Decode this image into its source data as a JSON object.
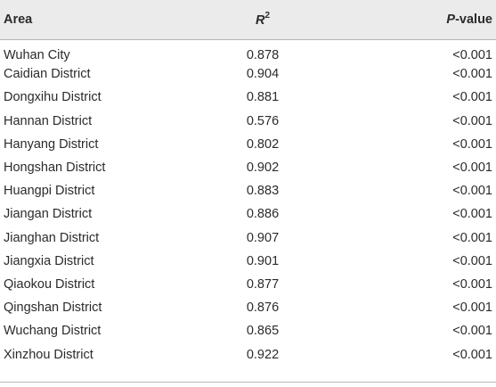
{
  "table": {
    "headers": {
      "area": "Area",
      "r2_base": "R",
      "r2_sup": "2",
      "p_italic": "P",
      "p_rest": "-value"
    },
    "rows": [
      {
        "area": "Wuhan City",
        "r2": "0.878",
        "p": "<0.001"
      },
      {
        "area": "Caidian District",
        "r2": "0.904",
        "p": "<0.001"
      },
      {
        "area": "Dongxihu District",
        "r2": "0.881",
        "p": "<0.001"
      },
      {
        "area": "Hannan District",
        "r2": "0.576",
        "p": "<0.001"
      },
      {
        "area": "Hanyang District",
        "r2": "0.802",
        "p": "<0.001"
      },
      {
        "area": "Hongshan District",
        "r2": "0.902",
        "p": "<0.001"
      },
      {
        "area": "Huangpi District",
        "r2": "0.883",
        "p": "<0.001"
      },
      {
        "area": "Jiangan District",
        "r2": "0.886",
        "p": "<0.001"
      },
      {
        "area": "Jianghan District",
        "r2": "0.907",
        "p": "<0.001"
      },
      {
        "area": "Jiangxia District",
        "r2": "0.901",
        "p": "<0.001"
      },
      {
        "area": "Qiaokou District",
        "r2": "0.877",
        "p": "<0.001"
      },
      {
        "area": "Qingshan District",
        "r2": "0.876",
        "p": "<0.001"
      },
      {
        "area": "Wuchang District",
        "r2": "0.865",
        "p": "<0.001"
      },
      {
        "area": "Xinzhou District",
        "r2": "0.922",
        "p": "<0.001"
      }
    ]
  }
}
